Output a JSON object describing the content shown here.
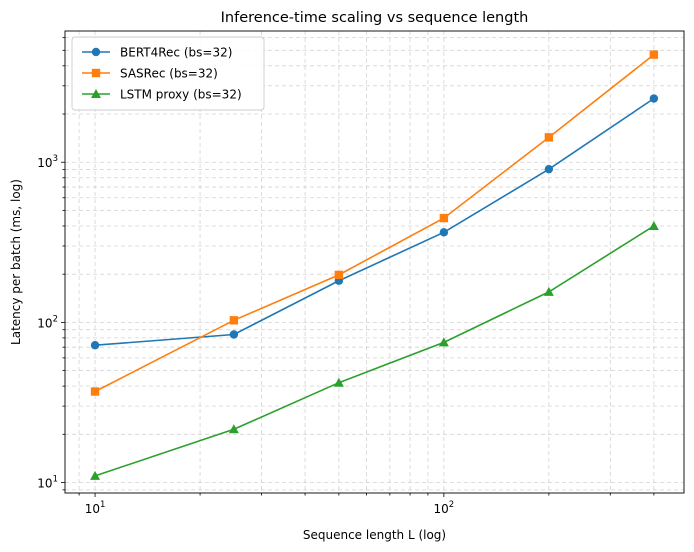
{
  "chart_data": {
    "type": "line",
    "title": "Inference-time scaling vs sequence length",
    "xlabel": "Sequence length L (log)",
    "ylabel": "Latency per batch (ms, log)",
    "x_scale": "log",
    "y_scale": "log",
    "xlim": [
      8.2,
      488
    ],
    "ylim": [
      8.6,
      6600
    ],
    "x_ticks": [
      {
        "value": 10,
        "base": "10",
        "exp": "1"
      },
      {
        "value": 100,
        "base": "10",
        "exp": "2"
      }
    ],
    "y_ticks": [
      {
        "value": 10,
        "base": "10",
        "exp": "1"
      },
      {
        "value": 100,
        "base": "10",
        "exp": "2"
      },
      {
        "value": 1000,
        "base": "10",
        "exp": "3"
      }
    ],
    "grid": true,
    "legend_position": "top-left",
    "x": [
      10,
      25,
      50,
      100,
      200,
      400
    ],
    "series": [
      {
        "name": "BERT4Rec (bs=32)",
        "color": "#1f77b4",
        "marker": "circle",
        "values": [
          72,
          84,
          182,
          365,
          905,
          2500
        ]
      },
      {
        "name": "SASRec (bs=32)",
        "color": "#ff7f0e",
        "marker": "square",
        "values": [
          37,
          103,
          198,
          448,
          1430,
          4700
        ]
      },
      {
        "name": "LSTM proxy (bs=32)",
        "color": "#2ca02c",
        "marker": "triangle",
        "values": [
          11,
          21.5,
          42,
          75,
          155,
          400
        ]
      }
    ]
  }
}
